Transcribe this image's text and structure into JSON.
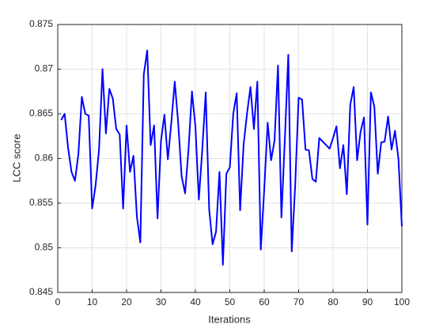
{
  "chart_data": {
    "type": "line",
    "xlabel": "Iterations",
    "ylabel": "LCC score",
    "x": [
      1,
      2,
      3,
      4,
      5,
      6,
      7,
      8,
      9,
      10,
      11,
      12,
      13,
      14,
      15,
      16,
      17,
      18,
      19,
      20,
      21,
      22,
      23,
      24,
      25,
      26,
      27,
      28,
      29,
      30,
      31,
      32,
      33,
      34,
      35,
      36,
      37,
      38,
      39,
      40,
      41,
      42,
      43,
      44,
      45,
      46,
      47,
      48,
      49,
      50,
      51,
      52,
      53,
      54,
      55,
      56,
      57,
      58,
      59,
      60,
      61,
      62,
      63,
      64,
      65,
      66,
      67,
      68,
      69,
      70,
      71,
      72,
      73,
      74,
      75,
      76,
      77,
      78,
      79,
      80,
      81,
      82,
      83,
      84,
      85,
      86,
      87,
      88,
      89,
      90,
      91,
      92,
      93,
      94,
      95,
      96,
      97,
      98,
      99,
      100
    ],
    "series": [
      {
        "color": "#0000ff",
        "values": [
          0.8643,
          0.865,
          0.8612,
          0.8585,
          0.8575,
          0.8605,
          0.8669,
          0.865,
          0.8648,
          0.8544,
          0.857,
          0.861,
          0.87,
          0.8628,
          0.8678,
          0.8667,
          0.8633,
          0.8627,
          0.8544,
          0.8637,
          0.8585,
          0.8603,
          0.8535,
          0.8506,
          0.8694,
          0.8721,
          0.8615,
          0.8637,
          0.8533,
          0.862,
          0.8649,
          0.8599,
          0.864,
          0.8686,
          0.864,
          0.858,
          0.8561,
          0.861,
          0.8675,
          0.8636,
          0.8554,
          0.861,
          0.8674,
          0.8543,
          0.8504,
          0.8518,
          0.8585,
          0.8481,
          0.8583,
          0.859,
          0.865,
          0.8673,
          0.8542,
          0.8615,
          0.865,
          0.868,
          0.8633,
          0.8686,
          0.8498,
          0.8565,
          0.864,
          0.8598,
          0.862,
          0.8704,
          0.8534,
          0.8622,
          0.8716,
          0.8496,
          0.857,
          0.8668,
          0.8666,
          0.861,
          0.8609,
          0.8577,
          0.8574,
          0.8623,
          0.8619,
          0.8615,
          0.8611,
          0.8623,
          0.8636,
          0.8589,
          0.8615,
          0.856,
          0.866,
          0.868,
          0.8598,
          0.863,
          0.8646,
          0.8526,
          0.8674,
          0.8658,
          0.8583,
          0.8618,
          0.8619,
          0.8647,
          0.861,
          0.8631,
          0.86,
          0.8524
        ]
      }
    ],
    "xlim": [
      0,
      100
    ],
    "xticks": [
      0,
      10,
      20,
      30,
      40,
      50,
      60,
      70,
      80,
      90,
      100
    ],
    "ylim": [
      0.845,
      0.875
    ],
    "yticks": [
      0.845,
      0.85,
      0.855,
      0.86,
      0.865,
      0.87,
      0.875
    ],
    "grid": true
  }
}
